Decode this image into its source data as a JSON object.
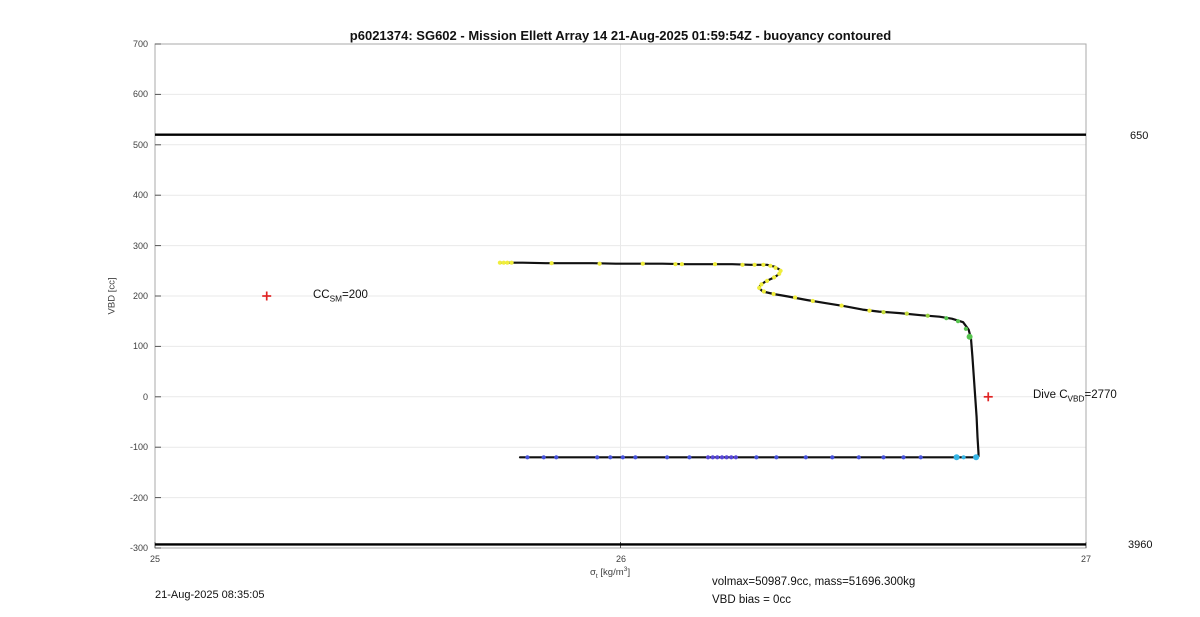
{
  "title": "p6021374: SG602 - Mission Ellett Array 14 21-Aug-2025 01:59:54Z - buoyancy contoured",
  "annotations": {
    "timestamp": "21-Aug-2025 08:35:05",
    "volmax": "volmax=50987.9cc, mass=51696.300kg",
    "vbd_bias": "VBD bias = 0cc"
  },
  "chart_data": {
    "type": "line",
    "title": "p6021374: SG602 - Mission Ellett Array 14 21-Aug-2025 01:59:54Z - buoyancy contoured",
    "ylabel": "VBD [cc]",
    "xlabel_parts": {
      "pre": "σ",
      "sub": "t",
      "mid": " [kg/m",
      "sup": "3",
      "post": "]"
    },
    "xlim": [
      25,
      27
    ],
    "ylim": [
      -300,
      700
    ],
    "x_ticks": [
      25,
      26,
      27
    ],
    "y_ticks": [
      700,
      600,
      500,
      400,
      300,
      200,
      100,
      0,
      -100,
      -200,
      -300
    ],
    "grid": true,
    "grid_color": "#e9e9e9",
    "box_color": "#aaaaaa",
    "tick_color": "#555555",
    "curve_color": "#111111",
    "marker_color": "#e02424",
    "ref_lines": [
      {
        "vbd": 520,
        "label": "650"
      },
      {
        "vbd": -293,
        "label": "3960"
      }
    ],
    "markers": [
      {
        "sigma": 25.24,
        "vbd": 200,
        "label": {
          "pre": "CC",
          "sub": "SM",
          "post": "=200"
        }
      },
      {
        "sigma": 26.79,
        "vbd": 0,
        "label": {
          "pre": "Dive C",
          "sub": "VBD",
          "post": "=2770"
        }
      }
    ],
    "palette": {
      "y": "#f0ee3c",
      "yg": "#c7dd3e",
      "gy": "#97d33f",
      "g": "#57c44f",
      "b": "#4753dd",
      "i": "#5747d8",
      "c": "#36b5e5"
    },
    "curve": [
      [
        25.741,
        266
      ],
      [
        25.79,
        266
      ],
      [
        25.84,
        265
      ],
      [
        25.89,
        265
      ],
      [
        25.94,
        265
      ],
      [
        25.99,
        264
      ],
      [
        26.04,
        264
      ],
      [
        26.09,
        264
      ],
      [
        26.14,
        263
      ],
      [
        26.19,
        263
      ],
      [
        26.24,
        263
      ],
      [
        26.28,
        262
      ],
      [
        26.315,
        262
      ],
      [
        26.332,
        258
      ],
      [
        26.344,
        251
      ],
      [
        26.342,
        244
      ],
      [
        26.328,
        236
      ],
      [
        26.312,
        229
      ],
      [
        26.301,
        222
      ],
      [
        26.297,
        216
      ],
      [
        26.306,
        209
      ],
      [
        26.329,
        204
      ],
      [
        26.36,
        199
      ],
      [
        26.4,
        192
      ],
      [
        26.44,
        186
      ],
      [
        26.48,
        180
      ],
      [
        26.52,
        173
      ],
      [
        26.555,
        169
      ],
      [
        26.6,
        166
      ],
      [
        26.645,
        162
      ],
      [
        26.685,
        159
      ],
      [
        26.712,
        155
      ],
      [
        26.736,
        148
      ],
      [
        26.748,
        133
      ],
      [
        26.753,
        115
      ],
      [
        26.756,
        80
      ],
      [
        26.759,
        40
      ],
      [
        26.762,
        0
      ],
      [
        26.765,
        -40
      ],
      [
        26.767,
        -80
      ],
      [
        26.769,
        -112
      ],
      [
        26.769,
        -118
      ],
      [
        26.76,
        -120
      ],
      [
        26.6,
        -120
      ],
      [
        26.4,
        -120
      ],
      [
        26.2,
        -120
      ],
      [
        26.0,
        -120
      ],
      [
        25.9,
        -120
      ],
      [
        25.784,
        -120
      ]
    ],
    "dots": [
      [
        25.741,
        266,
        "y"
      ],
      [
        25.749,
        266,
        "y"
      ],
      [
        25.757,
        266,
        "y"
      ],
      [
        25.766,
        266,
        "y"
      ],
      [
        25.852,
        265,
        "y"
      ],
      [
        25.955,
        264,
        "y"
      ],
      [
        26.048,
        264,
        "y"
      ],
      [
        26.118,
        263,
        "y"
      ],
      [
        26.132,
        263,
        "y"
      ],
      [
        26.203,
        263,
        "y"
      ],
      [
        26.262,
        262,
        "y"
      ],
      [
        26.288,
        262,
        "y"
      ],
      [
        26.307,
        262,
        "y"
      ],
      [
        26.322,
        260,
        "y"
      ],
      [
        26.333,
        256,
        "y"
      ],
      [
        26.344,
        250,
        "y"
      ],
      [
        26.341,
        244,
        "y"
      ],
      [
        26.33,
        237,
        "y"
      ],
      [
        26.315,
        230,
        "y"
      ],
      [
        26.303,
        223,
        "y"
      ],
      [
        26.298,
        216,
        "y"
      ],
      [
        26.308,
        209,
        "y"
      ],
      [
        26.329,
        204,
        "y"
      ],
      [
        26.375,
        197,
        "y"
      ],
      [
        26.413,
        190,
        "y"
      ],
      [
        26.475,
        181,
        "y"
      ],
      [
        26.535,
        171,
        "y"
      ],
      [
        26.565,
        168,
        "yg"
      ],
      [
        26.615,
        165,
        "yg"
      ],
      [
        26.66,
        161,
        "gy"
      ],
      [
        26.7,
        156,
        "g"
      ],
      [
        26.725,
        150,
        "g"
      ],
      [
        26.742,
        135,
        "g"
      ],
      [
        26.75,
        119,
        "g",
        3
      ],
      [
        25.8,
        -120,
        "b"
      ],
      [
        25.835,
        -120,
        "b"
      ],
      [
        25.862,
        -120,
        "b"
      ],
      [
        25.95,
        -120,
        "b"
      ],
      [
        25.978,
        -120,
        "b"
      ],
      [
        26.005,
        -120,
        "b"
      ],
      [
        26.032,
        -120,
        "b"
      ],
      [
        26.1,
        -120,
        "b"
      ],
      [
        26.148,
        -120,
        "b"
      ],
      [
        26.188,
        -120,
        "i"
      ],
      [
        26.198,
        -120,
        "i"
      ],
      [
        26.208,
        -120,
        "i"
      ],
      [
        26.218,
        -120,
        "i"
      ],
      [
        26.228,
        -120,
        "i"
      ],
      [
        26.238,
        -120,
        "i"
      ],
      [
        26.248,
        -120,
        "i"
      ],
      [
        26.292,
        -120,
        "b"
      ],
      [
        26.335,
        -120,
        "b"
      ],
      [
        26.398,
        -120,
        "b"
      ],
      [
        26.455,
        -120,
        "b"
      ],
      [
        26.512,
        -120,
        "b"
      ],
      [
        26.565,
        -120,
        "b"
      ],
      [
        26.608,
        -120,
        "b"
      ],
      [
        26.645,
        -120,
        "b"
      ],
      [
        26.722,
        -120,
        "c",
        3
      ],
      [
        26.737,
        -120,
        "c"
      ],
      [
        26.764,
        -120,
        "c",
        3
      ]
    ]
  }
}
